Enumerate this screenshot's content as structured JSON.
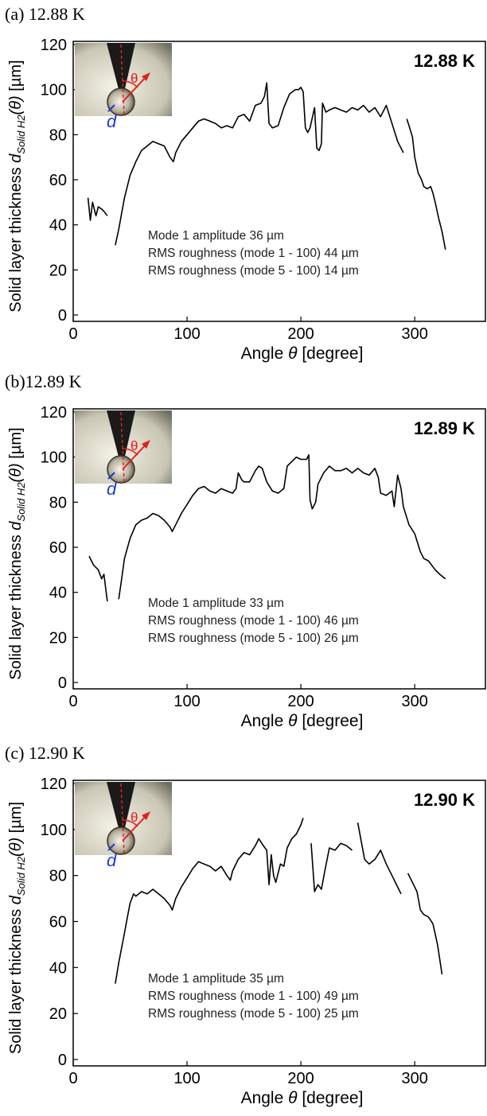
{
  "chart_data": [
    {
      "type": "line",
      "title": "(a) 12.88 K",
      "temp_label": "12.88 K",
      "annotations": [
        "Mode 1 amplitude 36 µm",
        "RMS roughness (mode 1 - 100) 44 µm",
        "RMS roughness (mode 5 - 100) 14 µm"
      ],
      "inset_labels": [
        "θ",
        "d"
      ],
      "x_label": {
        "text": "Angle ",
        "symbol": "θ",
        "unit": " [degree]"
      },
      "y_label": {
        "text": "Solid layer thickness ",
        "symbol": "d",
        "subscript": "Solid H2",
        "argument": "(θ)",
        "unit": " [µm]"
      },
      "color": "#000000",
      "xlim": [
        0,
        360
      ],
      "ylim": [
        0,
        120
      ],
      "xticks": [
        0,
        100,
        200,
        300
      ],
      "yticks": [
        0,
        20,
        40,
        60,
        80,
        100,
        120
      ],
      "x": [
        13,
        15,
        17,
        20,
        22,
        25,
        27,
        30,
        33,
        37,
        40,
        45,
        50,
        55,
        60,
        65,
        70,
        75,
        80,
        85,
        88,
        90,
        95,
        100,
        105,
        110,
        115,
        120,
        125,
        130,
        135,
        140,
        145,
        150,
        155,
        160,
        165,
        168,
        170,
        172,
        175,
        180,
        185,
        190,
        195,
        198,
        200,
        202,
        204,
        206,
        208,
        212,
        214,
        216,
        218,
        219,
        222,
        225,
        230,
        235,
        240,
        245,
        250,
        255,
        260,
        265,
        270,
        275,
        280,
        285,
        288,
        290,
        291,
        293,
        295,
        298,
        300,
        303,
        306,
        308,
        311,
        314,
        316,
        318,
        321,
        324,
        327
      ],
      "values": [
        52,
        42,
        50,
        44,
        48,
        47,
        46,
        44,
        null,
        31,
        38,
        52,
        62,
        68,
        73,
        75,
        77,
        76,
        75,
        70,
        68,
        72,
        77,
        80,
        83,
        86,
        87,
        86,
        85,
        83,
        84,
        83,
        88,
        89,
        86,
        93,
        94,
        97,
        103,
        85,
        83,
        84,
        92,
        98,
        100,
        100,
        101,
        99,
        83,
        81,
        83,
        92,
        74,
        73,
        76,
        94,
        90,
        91,
        92,
        91,
        90,
        92,
        91,
        93,
        90,
        92,
        88,
        93,
        85,
        77,
        74,
        72,
        null,
        87,
        84,
        79,
        70,
        63,
        60,
        57,
        56,
        57,
        54,
        50,
        43,
        37,
        29
      ]
    },
    {
      "type": "line",
      "title": "(b)12.89 K",
      "temp_label": "12.89 K",
      "annotations": [
        "Mode 1 amplitude 33 µm",
        "RMS roughness (mode 1 - 100) 46 µm",
        "RMS roughness (mode 5 - 100) 26 µm"
      ],
      "inset_labels": [
        "θ",
        "d"
      ],
      "x_label": {
        "text": "Angle ",
        "symbol": "θ",
        "unit": " [degree]"
      },
      "y_label": {
        "text": "Solid layer thickness ",
        "symbol": "d",
        "subscript": "Solid H2",
        "argument": "(θ)",
        "unit": " [µm]"
      },
      "color": "#000000",
      "xlim": [
        0,
        360
      ],
      "ylim": [
        0,
        120
      ],
      "xticks": [
        0,
        100,
        200,
        300
      ],
      "yticks": [
        0,
        20,
        40,
        60,
        80,
        100,
        120
      ],
      "x": [
        14,
        18,
        22,
        25,
        27,
        30,
        35,
        40,
        42,
        45,
        50,
        55,
        60,
        65,
        70,
        75,
        80,
        85,
        87,
        90,
        95,
        100,
        105,
        110,
        115,
        120,
        125,
        130,
        135,
        140,
        143,
        145,
        148,
        150,
        155,
        160,
        163,
        166,
        170,
        175,
        180,
        185,
        188,
        192,
        196,
        200,
        205,
        207,
        208,
        210,
        213,
        215,
        220,
        225,
        230,
        235,
        240,
        245,
        250,
        255,
        260,
        265,
        268,
        270,
        275,
        280,
        282,
        285,
        288,
        290,
        295,
        300,
        305,
        308,
        312,
        318,
        322,
        327
      ],
      "values": [
        56,
        52,
        50,
        46,
        48,
        36,
        null,
        37,
        44,
        55,
        64,
        70,
        72,
        73,
        75,
        74,
        72,
        69,
        67,
        70,
        75,
        79,
        83,
        86,
        87,
        85,
        84,
        86,
        85,
        84,
        86,
        93,
        90,
        89,
        89,
        94,
        96,
        95,
        89,
        85,
        84,
        86,
        96,
        98,
        100,
        99,
        99,
        101,
        81,
        77,
        80,
        88,
        93,
        96,
        94,
        94,
        95,
        93,
        95,
        93,
        92,
        95,
        91,
        84,
        83,
        85,
        78,
        92,
        86,
        78,
        70,
        66,
        58,
        55,
        54,
        50,
        48,
        46
      ]
    },
    {
      "type": "line",
      "title": "(c) 12.90 K",
      "temp_label": "12.90 K",
      "annotations": [
        "Mode 1 amplitude 35 µm",
        "RMS roughness (mode 1 - 100) 49 µm",
        "RMS roughness (mode 5 - 100) 25 µm"
      ],
      "inset_labels": [
        "θ",
        "d"
      ],
      "x_label": {
        "text": "Angle ",
        "symbol": "θ",
        "unit": " [degree]"
      },
      "y_label": {
        "text": "Solid layer thickness ",
        "symbol": "d",
        "subscript": "Solid H2",
        "argument": "(θ)",
        "unit": " [µm]"
      },
      "color": "#000000",
      "xlim": [
        0,
        360
      ],
      "ylim": [
        0,
        120
      ],
      "xticks": [
        0,
        100,
        200,
        300
      ],
      "yticks": [
        0,
        20,
        40,
        60,
        80,
        100,
        120
      ],
      "x": [
        37,
        40,
        45,
        48,
        50,
        53,
        55,
        60,
        65,
        70,
        75,
        80,
        85,
        87,
        90,
        95,
        100,
        105,
        110,
        115,
        120,
        125,
        130,
        135,
        138,
        140,
        145,
        150,
        155,
        160,
        163,
        167,
        170,
        172,
        174,
        176,
        178,
        182,
        185,
        188,
        192,
        196,
        200,
        202,
        205,
        209,
        212,
        215,
        218,
        221,
        225,
        230,
        235,
        240,
        245,
        248,
        250,
        253,
        256,
        260,
        265,
        270,
        275,
        280,
        285,
        288,
        290,
        294,
        298,
        302,
        305,
        308,
        312,
        316,
        320,
        324
      ],
      "values": [
        33,
        42,
        55,
        63,
        68,
        72,
        71,
        73,
        72,
        74,
        72,
        70,
        67,
        65,
        70,
        75,
        79,
        83,
        86,
        85,
        84,
        82,
        84,
        80,
        78,
        82,
        87,
        90,
        89,
        93,
        96,
        93,
        91,
        76,
        89,
        80,
        77,
        85,
        84,
        92,
        96,
        98,
        102,
        105,
        null,
        94,
        73,
        76,
        74,
        82,
        92,
        91,
        94,
        93,
        91,
        null,
        103,
        95,
        87,
        85,
        87,
        91,
        85,
        80,
        75,
        72,
        null,
        81,
        77,
        73,
        65,
        63,
        62,
        59,
        50,
        37
      ]
    }
  ]
}
